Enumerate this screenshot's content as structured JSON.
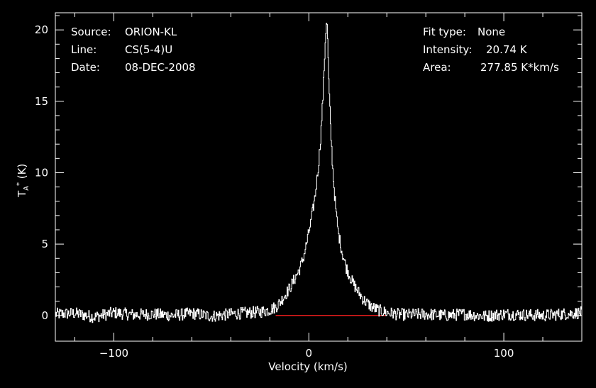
{
  "info_left": {
    "source_label": "Source:",
    "source_value": "ORION-KL",
    "line_label": "Line:",
    "line_value": "CS(5-4)U",
    "date_label": "Date:",
    "date_value": "08-DEC-2008"
  },
  "info_right": {
    "fit_label": "Fit type:",
    "fit_value": "None",
    "intensity_label": "Intensity:",
    "intensity_value": "20.74 K",
    "area_label": "Area:",
    "area_value": "277.85 K*km/s"
  },
  "chart_data": {
    "type": "line",
    "xlabel": "Velocity (km/s)",
    "ylabel_main": "T",
    "ylabel_sub": "A",
    "ylabel_sup": "*",
    "ylabel_unit": "(K)",
    "xlim": [
      -130,
      140
    ],
    "ylim": [
      -1.8,
      21.2
    ],
    "x_ticks": [
      -100,
      0,
      100
    ],
    "y_ticks": [
      0,
      5,
      10,
      15,
      20
    ],
    "grid": false,
    "colors": {
      "background": "#000000",
      "series": "#ffffff",
      "baseline": "#ff2020",
      "axis": "#ffffff"
    },
    "baseline": {
      "y": 0,
      "x_start": -17,
      "x_end": 40
    },
    "series": [
      {
        "values_note_free": true,
        "x": [
          -130,
          -120,
          -110,
          -100,
          -90,
          -80,
          -70,
          -60,
          -50,
          -40,
          -30,
          -25,
          -20,
          -17,
          -15,
          -13,
          -10,
          -8,
          -5,
          -3,
          -1,
          1,
          2,
          3,
          4,
          5,
          6,
          7,
          8,
          8.5,
          9,
          9.5,
          10,
          11,
          12,
          13,
          14,
          15,
          17,
          19,
          22,
          25,
          28,
          32,
          36,
          40,
          45,
          50,
          60,
          70,
          80,
          90,
          100,
          110,
          120,
          130,
          140
        ],
        "y": [
          0.1,
          0.15,
          -0.1,
          0.2,
          0.05,
          0.1,
          0.0,
          0.15,
          -0.05,
          0.1,
          0.2,
          0.25,
          0.4,
          0.6,
          0.9,
          1.3,
          1.9,
          2.4,
          3.2,
          4.0,
          5.2,
          6.6,
          7.4,
          8.3,
          9.4,
          10.8,
          12.6,
          15.0,
          18.2,
          19.8,
          20.74,
          19.4,
          16.8,
          13.2,
          10.6,
          8.6,
          7.0,
          5.8,
          4.4,
          3.4,
          2.4,
          1.7,
          1.1,
          0.6,
          0.35,
          0.2,
          0.1,
          0.05,
          0.1,
          0.0,
          0.1,
          -0.05,
          0.1,
          0.05,
          0.0,
          0.1,
          0.2
        ]
      }
    ]
  }
}
